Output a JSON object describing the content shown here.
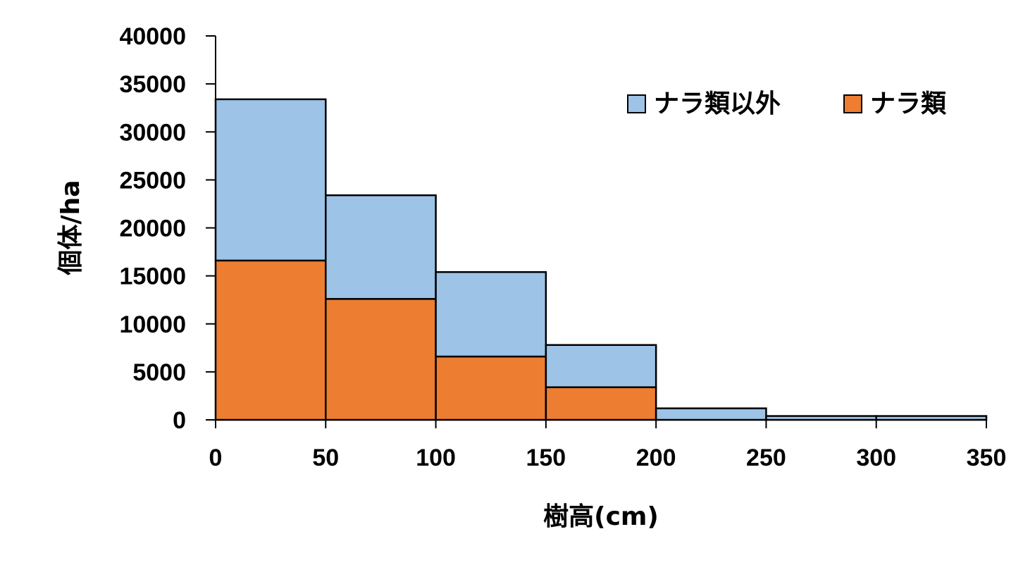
{
  "chart_data": {
    "type": "bar",
    "stacked": true,
    "histogram": true,
    "bin_edges": [
      0,
      50,
      100,
      150,
      200,
      250,
      300,
      350
    ],
    "x_ticks": [
      "0",
      "50",
      "100",
      "150",
      "200",
      "250",
      "300",
      "350"
    ],
    "y_ticks": [
      "0",
      "5000",
      "10000",
      "15000",
      "20000",
      "25000",
      "30000",
      "35000",
      "40000"
    ],
    "xlim": [
      0,
      350
    ],
    "ylim": [
      0,
      40000
    ],
    "xlabel": "樹高(cm)",
    "ylabel": "個体/ha",
    "grid": false,
    "legend_position": "top-right",
    "series": [
      {
        "name": "ナラ類",
        "color": "#ED7D31",
        "values": [
          16600,
          12600,
          6600,
          3400,
          0,
          0,
          0
        ]
      },
      {
        "name": "ナラ類以外",
        "color": "#9DC3E6",
        "values": [
          16800,
          10800,
          8800,
          4400,
          1200,
          400,
          400
        ]
      }
    ],
    "legend_order": [
      "ナラ類以外",
      "ナラ類"
    ]
  }
}
